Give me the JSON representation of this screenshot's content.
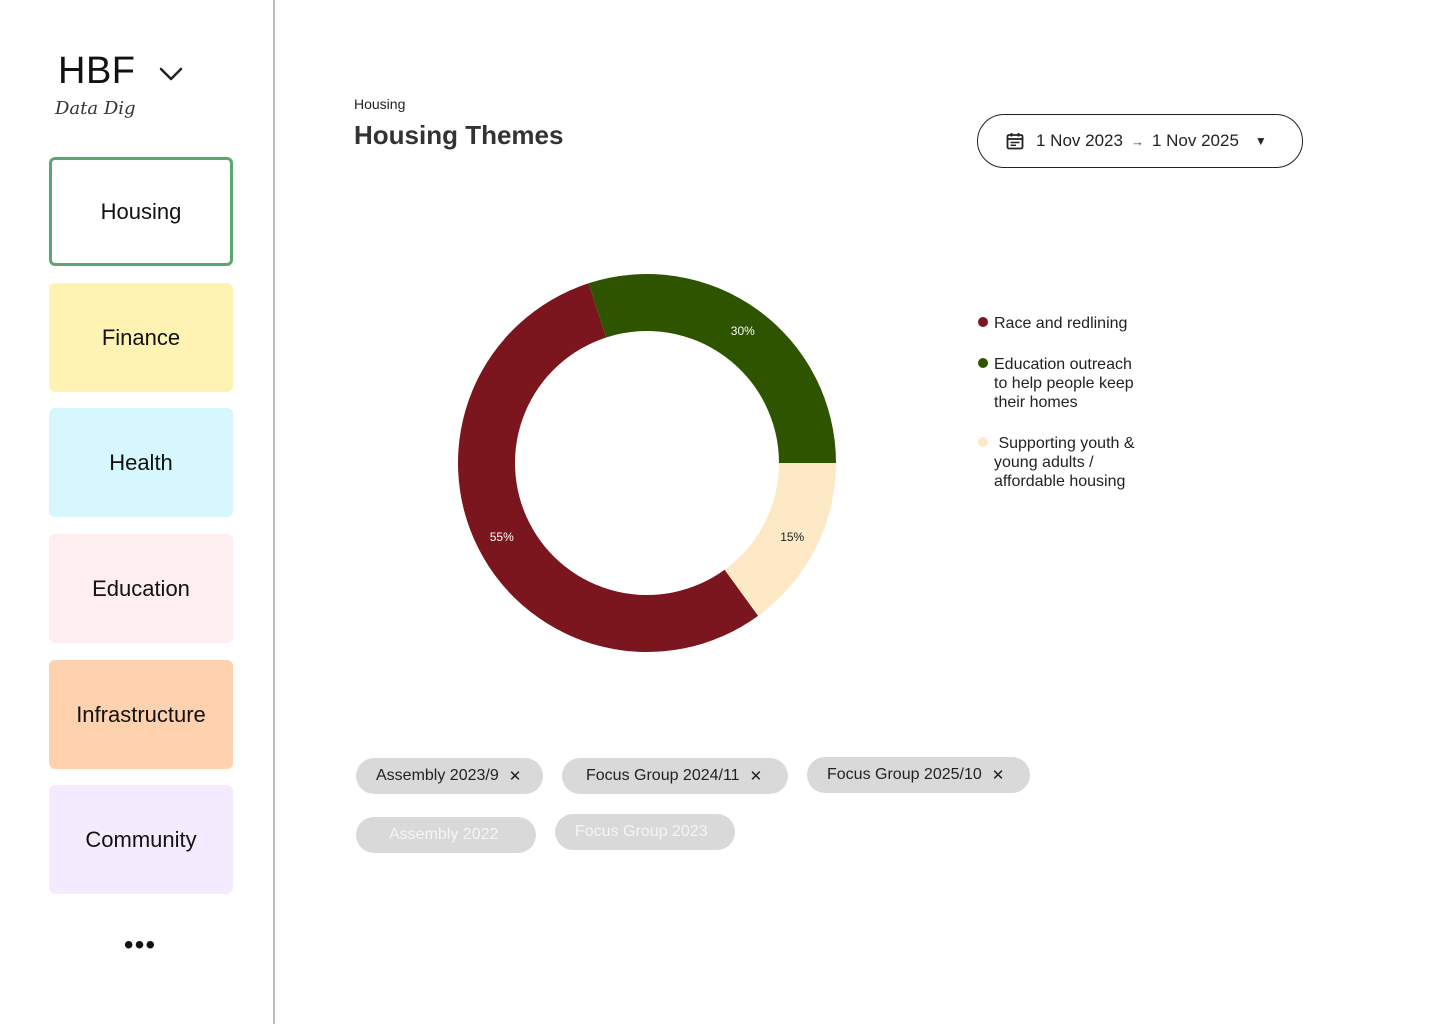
{
  "sidebar": {
    "brand": "HBF",
    "brand_sub": "Data Dig",
    "items": [
      {
        "label": "Housing",
        "color": "#ffffff",
        "active": true
      },
      {
        "label": "Finance",
        "color": "#fff3b3"
      },
      {
        "label": "Health",
        "color": "#d6f7fd"
      },
      {
        "label": "Education",
        "color": "#ffeef0"
      },
      {
        "label": "Infrastructure",
        "color": "#fed2ae"
      },
      {
        "label": "Community",
        "color": "#f5ebfe"
      }
    ],
    "more": "•••"
  },
  "header": {
    "breadcrumb": "Housing",
    "title": "Housing Themes"
  },
  "date_range": {
    "start": "1 Nov 2023",
    "end": "1 Nov 2025",
    "icon": "calendar-icon"
  },
  "chart_data": {
    "type": "pie",
    "donut": true,
    "slices": [
      {
        "label": "Race and redlining",
        "value": 55,
        "display": "55%",
        "color": "#7c161e"
      },
      {
        "label": "Education outreach to help people keep their homes",
        "value": 30,
        "display": "30%",
        "color": "#2e5400"
      },
      {
        "label": "Supporting youth & young adults / affordable housing",
        "value": 15,
        "display": "15%",
        "color": "#fee9c7"
      }
    ],
    "legend_position": "right"
  },
  "legend": [
    {
      "lines": [
        "Race and redlining"
      ],
      "color": "#7c161e"
    },
    {
      "lines": [
        "Education outreach",
        "to help people keep",
        "their homes"
      ],
      "color": "#2e5400"
    },
    {
      "lines": [
        " Supporting youth &",
        "young adults /",
        "affordable housing"
      ],
      "color": "#fee9c7"
    }
  ],
  "filters": {
    "active": [
      "Assembly 2023/9",
      "Focus Group 2024/11",
      "Focus Group 2025/10"
    ],
    "inactive": [
      "Assembly 2022",
      "Focus Group 2023"
    ]
  }
}
